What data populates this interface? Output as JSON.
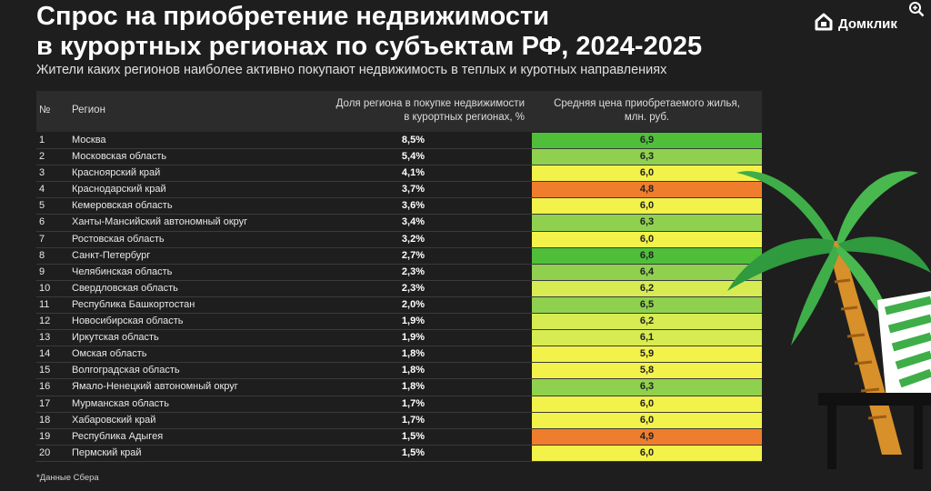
{
  "title_line1": "Спрос на приобретение недвижимости",
  "title_line2": "в курортных регионах по субъектам РФ, 2024-2025",
  "subtitle": "Жители каких регионов наиболее активно покупают недвижимость в теплых и куротных направлениях",
  "logo_text": "Домклик",
  "header": {
    "no": "№",
    "region": "Регион",
    "share_line1": "Доля региона в покупке недвижимости",
    "share_line2": "в курортных регионах, %",
    "price_line1": "Средняя цена приобретаемого жилья,",
    "price_line2": "млн. руб."
  },
  "rows": [
    {
      "no": "1",
      "region": "Москва",
      "share": "8,5%",
      "price": "6,9"
    },
    {
      "no": "2",
      "region": "Московская область",
      "share": "5,4%",
      "price": "6,3"
    },
    {
      "no": "3",
      "region": "Красноярский край",
      "share": "4,1%",
      "price": "6,0"
    },
    {
      "no": "4",
      "region": "Краснодарский край",
      "share": "3,7%",
      "price": "4,8"
    },
    {
      "no": "5",
      "region": "Кемеровская область",
      "share": "3,6%",
      "price": "6,0"
    },
    {
      "no": "6",
      "region": "Ханты-Мансийский автономный округ",
      "share": "3,4%",
      "price": "6,3"
    },
    {
      "no": "7",
      "region": "Ростовская область",
      "share": "3,2%",
      "price": "6,0"
    },
    {
      "no": "8",
      "region": "Санкт-Петербург",
      "share": "2,7%",
      "price": "6,8"
    },
    {
      "no": "9",
      "region": "Челябинская область",
      "share": "2,3%",
      "price": "6,4"
    },
    {
      "no": "10",
      "region": "Свердловская область",
      "share": "2,3%",
      "price": "6,2"
    },
    {
      "no": "11",
      "region": "Республика Башкортостан",
      "share": "2,0%",
      "price": "6,5"
    },
    {
      "no": "12",
      "region": "Новосибирская область",
      "share": "1,9%",
      "price": "6,2"
    },
    {
      "no": "13",
      "region": "Иркутская область",
      "share": "1,9%",
      "price": "6,1"
    },
    {
      "no": "14",
      "region": "Омская область",
      "share": "1,8%",
      "price": "5,9"
    },
    {
      "no": "15",
      "region": "Волгоградская область",
      "share": "1,8%",
      "price": "5,8"
    },
    {
      "no": "16",
      "region": "Ямало-Ненецкий автономный округ",
      "share": "1,8%",
      "price": "6,3"
    },
    {
      "no": "17",
      "region": "Мурманская область",
      "share": "1,7%",
      "price": "6,0"
    },
    {
      "no": "18",
      "region": "Хабаровский край",
      "share": "1,7%",
      "price": "6,0"
    },
    {
      "no": "19",
      "region": "Республика Адыгея",
      "share": "1,5%",
      "price": "4,9"
    },
    {
      "no": "20",
      "region": "Пермский край",
      "share": "1,5%",
      "price": "6,0"
    }
  ],
  "footnote": "*Данные Сбера",
  "colors": {
    "background": "#1e1e1e",
    "price_high": "#4fbf3a",
    "price_mid_green": "#8fd14f",
    "price_mid": "#d7ec52",
    "price_yellow": "#f3f24a",
    "price_low": "#ef7d2e"
  },
  "icons": [
    "domclick-logo-icon",
    "zoom-in-icon",
    "palm-tree-icon",
    "beach-chair-icon"
  ],
  "chart_data": {
    "type": "table",
    "title": "Спрос на приобретение недвижимости в курортных регионах по субъектам РФ, 2024-2025",
    "subtitle": "Жители каких регионов наиболее активно покупают недвижимость в теплых и куротных направлениях",
    "columns": [
      "№",
      "Регион",
      "Доля региона в покупке недвижимости в курортных регионах, %",
      "Средняя цена приобретаемого жилья, млн. руб."
    ],
    "categories": [
      "Москва",
      "Московская область",
      "Красноярский край",
      "Краснодарский край",
      "Кемеровская область",
      "Ханты-Мансийский автономный округ",
      "Ростовская область",
      "Санкт-Петербург",
      "Челябинская область",
      "Свердловская область",
      "Республика Башкортостан",
      "Новосибирская область",
      "Иркутская область",
      "Омская область",
      "Волгоградская область",
      "Ямало-Ненецкий автономный округ",
      "Мурманская область",
      "Хабаровский край",
      "Республика Адыгея",
      "Пермский край"
    ],
    "series": [
      {
        "name": "Доля региона в покупке недвижимости в курортных регионах, %",
        "values": [
          8.5,
          5.4,
          4.1,
          3.7,
          3.6,
          3.4,
          3.2,
          2.7,
          2.3,
          2.3,
          2.0,
          1.9,
          1.9,
          1.8,
          1.8,
          1.8,
          1.7,
          1.7,
          1.5,
          1.5
        ]
      },
      {
        "name": "Средняя цена приобретаемого жилья, млн. руб.",
        "values": [
          6.9,
          6.3,
          6.0,
          4.8,
          6.0,
          6.3,
          6.0,
          6.8,
          6.4,
          6.2,
          6.5,
          6.2,
          6.1,
          5.9,
          5.8,
          6.3,
          6.0,
          6.0,
          4.9,
          6.0
        ]
      }
    ],
    "color_scale": "price cells colored green (high) → yellow → orange (low)",
    "source_note": "*Данные Сбера"
  }
}
